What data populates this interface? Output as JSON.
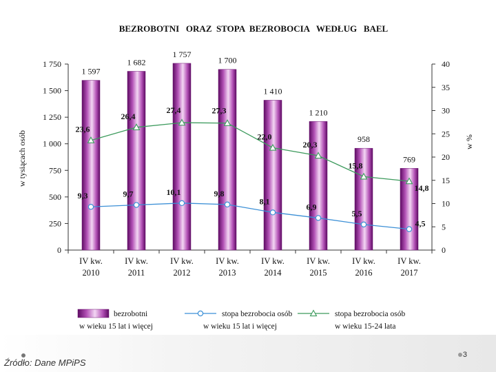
{
  "chart_data": {
    "type": "bar",
    "title": "BEZROBOTNI   ORAZ  STOPA  BEZROBOCIA   WEDŁUG   BAEL",
    "categories": [
      [
        "IV kw.",
        "2010"
      ],
      [
        "IV kw.",
        "2011"
      ],
      [
        "IV kw.",
        "2012"
      ],
      [
        "IV kw.",
        "2013"
      ],
      [
        "IV kw.",
        "2014"
      ],
      [
        "IV kw.",
        "2015"
      ],
      [
        "IV kw.",
        "2016"
      ],
      [
        "IV kw.",
        "2017"
      ]
    ],
    "y_left": {
      "label": "w tysiącach osób",
      "ylim": [
        0,
        1750
      ],
      "ticks": [
        0,
        250,
        500,
        750,
        1000,
        1250,
        1500,
        1750
      ],
      "tick_labels": [
        "0",
        "250",
        "500",
        "750",
        "1 000",
        "1 250",
        "1 500",
        "1 750"
      ]
    },
    "y_right": {
      "label": "w %",
      "ylim": [
        0,
        40
      ],
      "ticks": [
        0,
        5,
        10,
        15,
        20,
        25,
        30,
        35,
        40
      ],
      "tick_labels": [
        "0",
        "5",
        "10",
        "15",
        "20",
        "25",
        "30",
        "35",
        "40"
      ]
    },
    "series": [
      {
        "legend": [
          "bezrobotni",
          "w wieku 15 lat i więcej"
        ],
        "type": "bar",
        "axis": "left",
        "color": "#9b2a9e",
        "values": [
          1597,
          1682,
          1757,
          1700,
          1410,
          1210,
          958,
          769
        ],
        "labels": [
          "1 597",
          "1 682",
          "1 757",
          "1 700",
          "1 410",
          "1 210",
          "958",
          "769"
        ]
      },
      {
        "legend": [
          "stopa bezrobocia osób",
          "w wieku 15 lat i więcej"
        ],
        "type": "line",
        "axis": "right",
        "marker": "circle",
        "color": "#3b8fd6",
        "values": [
          9.3,
          9.7,
          10.1,
          9.8,
          8.1,
          6.9,
          5.5,
          4.5
        ],
        "labels": [
          "9,3",
          "9,7",
          "10,1",
          "9,8",
          "8,1",
          "6,9",
          "5,5",
          "4,5"
        ]
      },
      {
        "legend": [
          "stopa bezrobocia osób",
          "w wieku 15-24 lata"
        ],
        "type": "line",
        "axis": "right",
        "marker": "triangle",
        "color": "#3c9a5c",
        "values": [
          23.6,
          26.4,
          27.4,
          27.3,
          22.0,
          20.3,
          15.8,
          14.8
        ],
        "labels": [
          "23,6",
          "26,4",
          "27,4",
          "27,3",
          "22,0",
          "20,3",
          "15,8",
          "14,8"
        ]
      }
    ],
    "legend_position": "bottom",
    "grid": false
  },
  "footer": {
    "source": "Źródło: Dane MPiPS",
    "slide_number": "3"
  }
}
